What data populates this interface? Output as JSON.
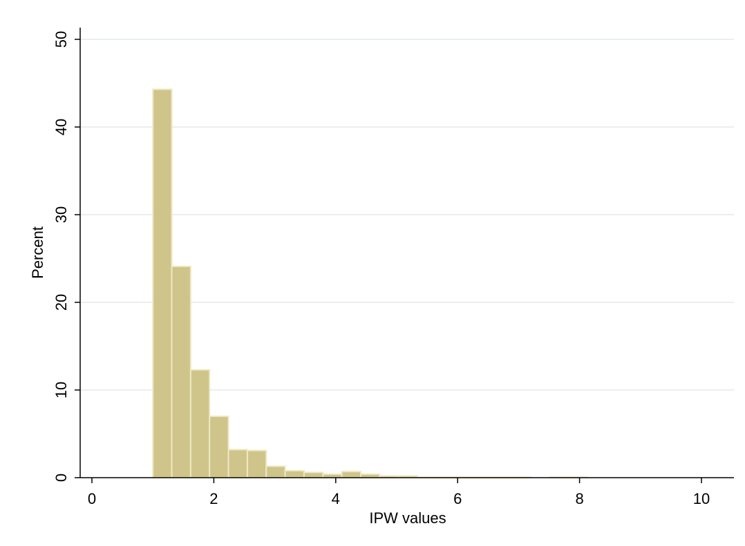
{
  "chart_data": {
    "type": "bar",
    "histogram": true,
    "xlabel": "IPW values",
    "ylabel": "Percent",
    "xlim": [
      -0.2,
      10.5
    ],
    "ylim": [
      0,
      50
    ],
    "xticks": [
      0,
      2,
      4,
      6,
      8,
      10
    ],
    "yticks": [
      0,
      10,
      20,
      30,
      40,
      50
    ],
    "grid": true,
    "bin_width": 0.31,
    "bins": [
      {
        "start": 1.0,
        "value": 44.3
      },
      {
        "start": 1.31,
        "value": 24.1
      },
      {
        "start": 1.62,
        "value": 12.3
      },
      {
        "start": 1.93,
        "value": 7.0
      },
      {
        "start": 2.24,
        "value": 3.2
      },
      {
        "start": 2.55,
        "value": 3.1
      },
      {
        "start": 2.86,
        "value": 1.3
      },
      {
        "start": 3.17,
        "value": 0.8
      },
      {
        "start": 3.48,
        "value": 0.6
      },
      {
        "start": 3.79,
        "value": 0.4
      },
      {
        "start": 4.1,
        "value": 0.7
      },
      {
        "start": 4.41,
        "value": 0.4
      },
      {
        "start": 4.72,
        "value": 0.2
      },
      {
        "start": 5.03,
        "value": 0.2
      },
      {
        "start": 5.34,
        "value": 0.05
      },
      {
        "start": 5.65,
        "value": 0.05
      },
      {
        "start": 5.96,
        "value": 0.05
      },
      {
        "start": 6.27,
        "value": 0.05
      },
      {
        "start": 6.58,
        "value": 0.05
      },
      {
        "start": 6.89,
        "value": 0.05
      },
      {
        "start": 7.51,
        "value": 0.05
      },
      {
        "start": 7.82,
        "value": 0.05
      }
    ]
  },
  "colors": {
    "bar_fill": "#cfc58a",
    "bar_stroke": "#eee8c4",
    "grid": "#e9eff1",
    "axis": "#000000"
  }
}
